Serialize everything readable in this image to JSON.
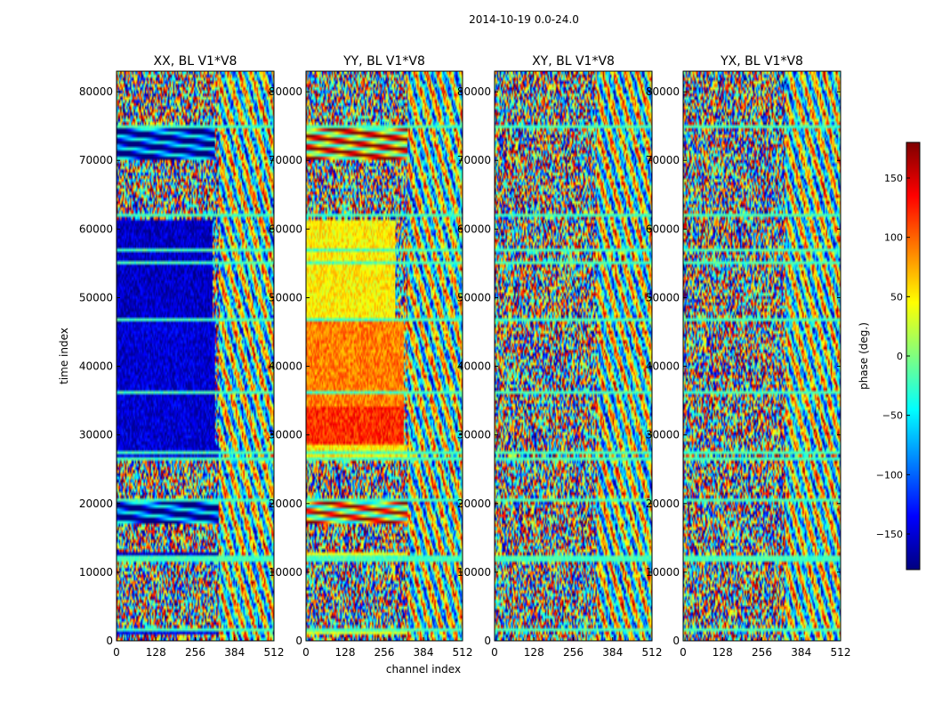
{
  "figure": {
    "suptitle": "2014-10-19 0.0-24.0",
    "xlabel": "channel index",
    "ylabel": "time index",
    "colorbar_label": "phase (deg.)"
  },
  "chart_data": {
    "type": "heatmap",
    "colormap": "jet",
    "colorbar_range": [
      -180,
      180
    ],
    "colorbar_ticks": [
      -150,
      -100,
      -50,
      0,
      50,
      100,
      150
    ],
    "xlim": [
      0,
      512
    ],
    "ylim": [
      0,
      83000
    ],
    "x_ticks": [
      0,
      128,
      256,
      384,
      512
    ],
    "y_ticks": [
      0,
      10000,
      20000,
      30000,
      40000,
      50000,
      60000,
      70000,
      80000
    ],
    "panels": [
      {
        "title": "XX, BL V1*V8",
        "coherent_bands": [
          {
            "t0": 1000,
            "t1": 2000,
            "c1": 512,
            "phase": -140
          },
          {
            "t0": 11500,
            "t1": 12800,
            "c1": 512,
            "phase": -150
          },
          {
            "t0": 17000,
            "t1": 20500,
            "c1": 330,
            "phase": -150,
            "fringes": true
          },
          {
            "t0": 26500,
            "t1": 28500,
            "c1": 512,
            "phase": -150
          },
          {
            "t0": 28500,
            "t1": 46500,
            "c1": 320,
            "phase": -150
          },
          {
            "t0": 47000,
            "t1": 61500,
            "c1": 310,
            "phase": -155
          },
          {
            "t0": 70000,
            "t1": 75000,
            "c1": 320,
            "phase": -150,
            "fringes": true
          }
        ]
      },
      {
        "title": "YY, BL V1*V8",
        "coherent_bands": [
          {
            "t0": 1000,
            "t1": 2000,
            "c1": 512,
            "phase": 30
          },
          {
            "t0": 11500,
            "t1": 12800,
            "c1": 512,
            "phase": 40
          },
          {
            "t0": 17000,
            "t1": 20500,
            "c1": 330,
            "phase": 60,
            "fringes": true
          },
          {
            "t0": 26500,
            "t1": 28500,
            "c1": 512,
            "phase": 50
          },
          {
            "t0": 28500,
            "t1": 34000,
            "c1": 320,
            "phase": 120
          },
          {
            "t0": 34000,
            "t1": 46500,
            "c1": 320,
            "phase": 90
          },
          {
            "t0": 47000,
            "t1": 61500,
            "c1": 290,
            "phase": 50
          },
          {
            "t0": 70000,
            "t1": 75000,
            "c1": 330,
            "phase": 80,
            "fringes": true
          }
        ]
      },
      {
        "title": "XY, BL V1*V8",
        "coherent_bands": []
      },
      {
        "title": "YX, BL V1*V8",
        "coherent_bands": []
      }
    ],
    "calibration_rows": [
      1500,
      12000,
      20500,
      26500,
      27500,
      36000,
      47000,
      55000,
      57000,
      62000,
      75000
    ]
  }
}
